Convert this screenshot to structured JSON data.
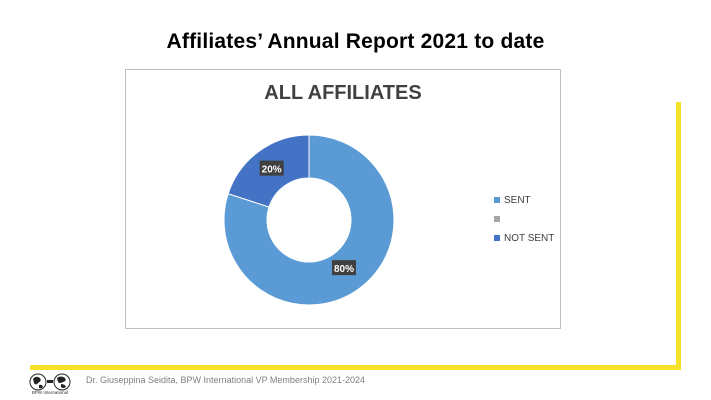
{
  "slide": {
    "title": "Affiliates’ Annual Report 2021 to date",
    "footer": "Dr. Giuseppina Seidita, BPW International VP Membership 2021-2024",
    "logo_text": "BPW International",
    "accent_color": "#f5e02a"
  },
  "chart_data": {
    "type": "donut",
    "title": "ALL AFFILIATES",
    "categories": [
      "SENT",
      "",
      "NOT SENT"
    ],
    "values": [
      80,
      0,
      20
    ],
    "data_labels": [
      "80%",
      "",
      "20%"
    ],
    "colors": [
      "#5b9bd5",
      "#a5a5a5",
      "#4472c4"
    ],
    "legend_position": "right"
  }
}
